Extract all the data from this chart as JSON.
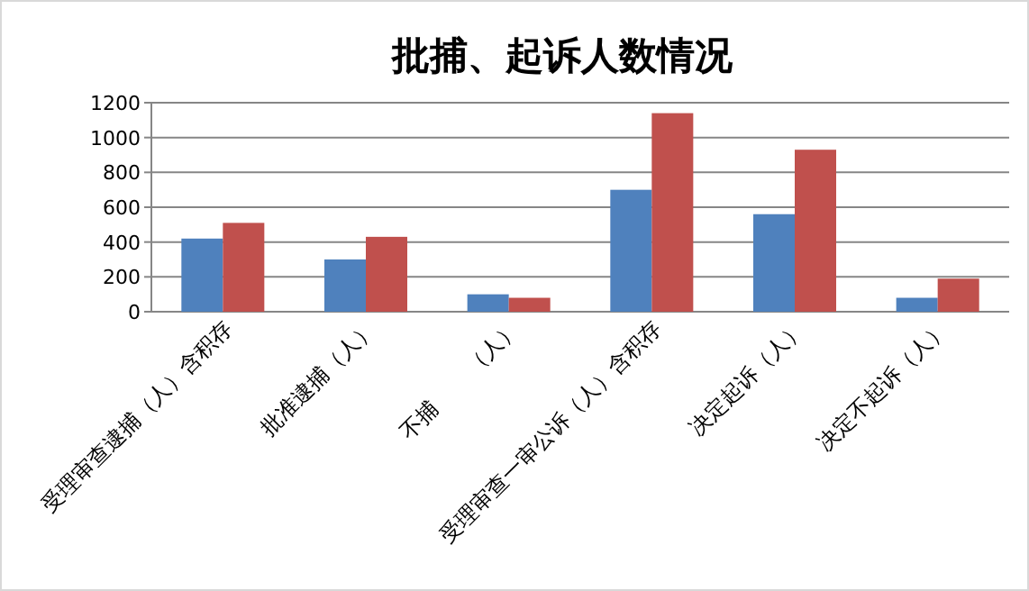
{
  "chart_data": {
    "type": "bar",
    "title": "批捕、起诉人数情况",
    "categories": [
      "受理审查逮捕（人）含积存",
      "批准逮捕（人）",
      "不捕       （人）",
      "受理审查一审公诉（人）含积存",
      "决定起诉（人）",
      "决定不起诉（人）"
    ],
    "series": [
      {
        "color": "#4f81bd",
        "values": [
          420,
          300,
          100,
          700,
          560,
          80
        ]
      },
      {
        "color": "#c0504d",
        "values": [
          510,
          430,
          80,
          1140,
          930,
          190
        ]
      }
    ],
    "ylim": [
      0,
      1200
    ],
    "yticks": [
      0,
      200,
      400,
      600,
      800,
      1000,
      1200
    ],
    "grid": "y"
  }
}
